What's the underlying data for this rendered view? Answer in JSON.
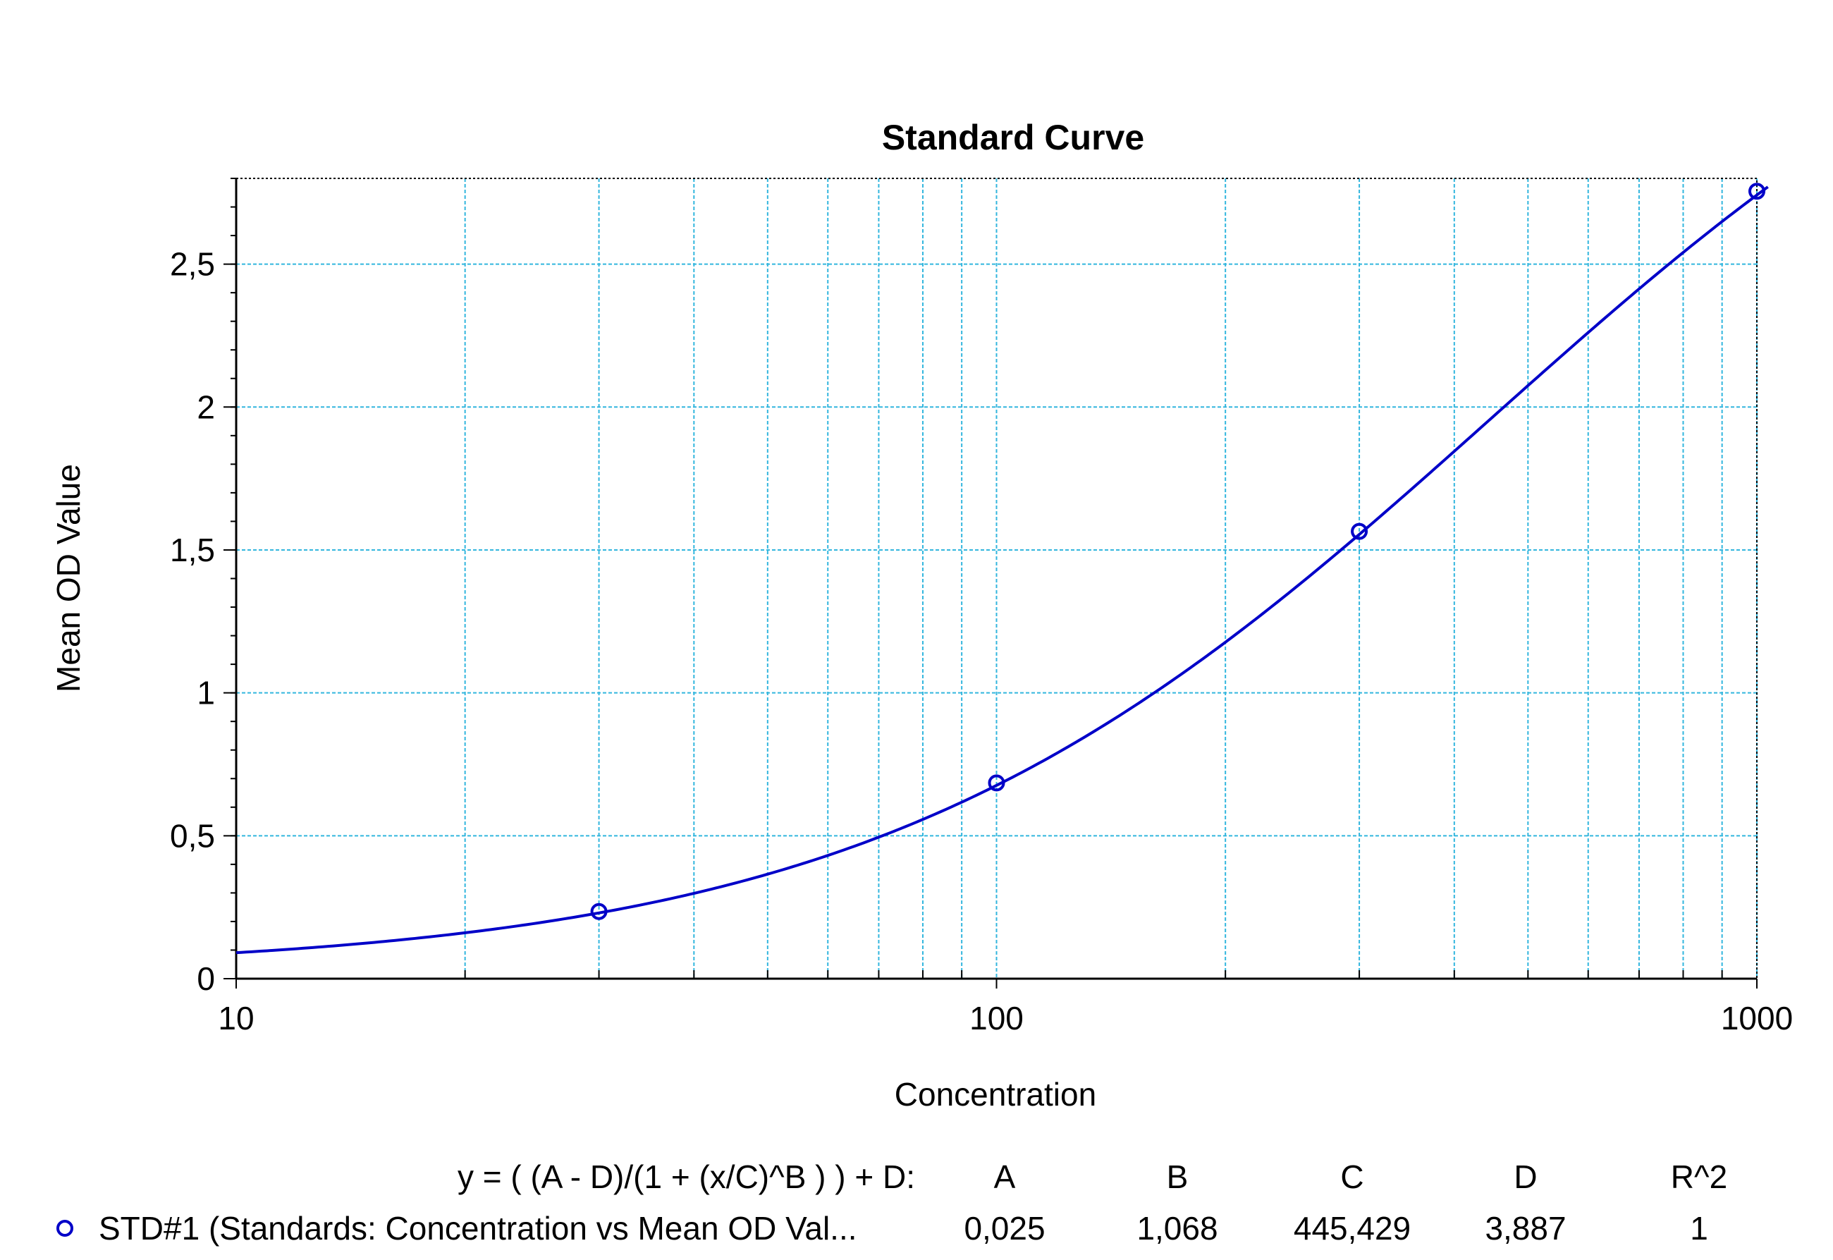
{
  "chart_data": {
    "type": "scatter",
    "title": "Standard Curve",
    "xlabel": "Concentration",
    "ylabel": "Mean OD Value",
    "x_scale": "log",
    "xlim": [
      10,
      1000
    ],
    "ylim": [
      0,
      2.8
    ],
    "x_ticks": [
      {
        "value": 10,
        "label": "10"
      },
      {
        "value": 100,
        "label": "100"
      },
      {
        "value": 1000,
        "label": "1000"
      }
    ],
    "y_ticks": [
      {
        "value": 0,
        "label": "0"
      },
      {
        "value": 0.5,
        "label": "0,5"
      },
      {
        "value": 1,
        "label": "1"
      },
      {
        "value": 1.5,
        "label": "1,5"
      },
      {
        "value": 2,
        "label": "2"
      },
      {
        "value": 2.5,
        "label": "2,5"
      }
    ],
    "grid": true,
    "series": [
      {
        "name": "STD#1 (Standards: Concentration vs Mean OD Val...",
        "points": [
          {
            "x": 30,
            "y": 0.235
          },
          {
            "x": 100,
            "y": 0.685
          },
          {
            "x": 300,
            "y": 1.565
          },
          {
            "x": 1000,
            "y": 2.755
          }
        ]
      }
    ],
    "fit": {
      "model": "4PL",
      "equation": "y = ( (A - D)/(1 + (x/C)^B ) ) + D:",
      "A": 0.025,
      "B": 1.068,
      "C": 445.429,
      "D": 3.887,
      "R2": 1
    },
    "legend": {
      "position": "bottom",
      "headers": [
        "A",
        "B",
        "C",
        "D",
        "R^2"
      ],
      "rows": [
        {
          "label": "STD#1 (Standards: Concentration vs Mean OD Val...",
          "values": [
            "0,025",
            "1,068",
            "445,429",
            "3,887",
            "1"
          ]
        }
      ]
    },
    "colors": {
      "series": "#0000c8",
      "grid": "#33b6de",
      "axis": "#000000"
    }
  }
}
